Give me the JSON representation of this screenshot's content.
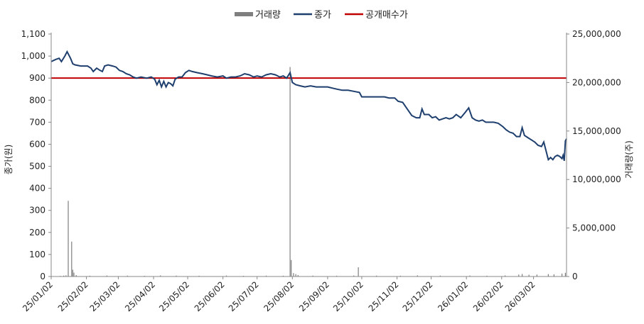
{
  "chart_data": {
    "type": "line",
    "legend": {
      "position": "top",
      "items": [
        {
          "label": "거래량",
          "color": "#7f7f7f",
          "kind": "bar"
        },
        {
          "label": "종가",
          "color": "#1f3f6e",
          "kind": "line"
        },
        {
          "label": "공개매수가",
          "color": "#c00000",
          "kind": "line"
        }
      ]
    },
    "ylabel": "종가(원)",
    "y2label": "거래량(주)",
    "ylim": [
      0,
      1100
    ],
    "y2lim": [
      0,
      25000000
    ],
    "yticks": [
      "0",
      "50",
      "100",
      "150",
      "200",
      "250",
      "300",
      "350",
      "400",
      "450",
      "500",
      "550",
      "600",
      "650",
      "700",
      "750",
      "800",
      "850",
      "900",
      "950",
      "1,000",
      "1,050",
      "1,100"
    ],
    "y2ticks": [
      "0",
      "5,000,000",
      "10,000,000",
      "15,000,000",
      "20,000,000",
      "25,000,000"
    ],
    "xticks": [
      "25/01/02",
      "25/02/02",
      "25/03/02",
      "25/04/02",
      "25/05/02",
      "25/06/02",
      "25/07/02",
      "25/08/02",
      "25/09/02",
      "25/10/02",
      "25/11/02",
      "25/12/02",
      "26/01/02",
      "26/02/02",
      "26/03/02"
    ],
    "x_range": [
      "2025-01-02",
      "2026-03-31"
    ],
    "tender_offer_price": 900,
    "series": [
      {
        "name": "종가",
        "color": "#1f3f6e",
        "points": [
          [
            "2025-01-02",
            975
          ],
          [
            "2025-01-06",
            985
          ],
          [
            "2025-01-09",
            990
          ],
          [
            "2025-01-11",
            975
          ],
          [
            "2025-01-14",
            1000
          ],
          [
            "2025-01-16",
            1020
          ],
          [
            "2025-01-19",
            990
          ],
          [
            "2025-01-21",
            965
          ],
          [
            "2025-01-23",
            960
          ],
          [
            "2025-01-28",
            955
          ],
          [
            "2025-02-03",
            955
          ],
          [
            "2025-02-06",
            945
          ],
          [
            "2025-02-08",
            930
          ],
          [
            "2025-02-11",
            945
          ],
          [
            "2025-02-14",
            935
          ],
          [
            "2025-02-16",
            930
          ],
          [
            "2025-02-18",
            955
          ],
          [
            "2025-02-21",
            960
          ],
          [
            "2025-02-25",
            955
          ],
          [
            "2025-02-28",
            950
          ],
          [
            "2025-03-03",
            935
          ],
          [
            "2025-03-06",
            930
          ],
          [
            "2025-03-09",
            920
          ],
          [
            "2025-03-12",
            915
          ],
          [
            "2025-03-15",
            905
          ],
          [
            "2025-03-18",
            900
          ],
          [
            "2025-03-22",
            905
          ],
          [
            "2025-03-27",
            900
          ],
          [
            "2025-03-31",
            905
          ],
          [
            "2025-04-03",
            895
          ],
          [
            "2025-04-05",
            870
          ],
          [
            "2025-04-07",
            890
          ],
          [
            "2025-04-09",
            860
          ],
          [
            "2025-04-11",
            885
          ],
          [
            "2025-04-13",
            860
          ],
          [
            "2025-04-15",
            880
          ],
          [
            "2025-04-17",
            875
          ],
          [
            "2025-04-19",
            865
          ],
          [
            "2025-04-21",
            895
          ],
          [
            "2025-04-24",
            905
          ],
          [
            "2025-04-27",
            905
          ],
          [
            "2025-04-30",
            925
          ],
          [
            "2025-05-03",
            935
          ],
          [
            "2025-05-06",
            930
          ],
          [
            "2025-05-10",
            925
          ],
          [
            "2025-05-15",
            920
          ],
          [
            "2025-05-19",
            915
          ],
          [
            "2025-05-23",
            910
          ],
          [
            "2025-05-28",
            905
          ],
          [
            "2025-06-02",
            910
          ],
          [
            "2025-06-05",
            900
          ],
          [
            "2025-06-09",
            905
          ],
          [
            "2025-06-13",
            905
          ],
          [
            "2025-06-17",
            910
          ],
          [
            "2025-06-21",
            920
          ],
          [
            "2025-06-25",
            915
          ],
          [
            "2025-06-29",
            905
          ],
          [
            "2025-07-02",
            910
          ],
          [
            "2025-07-06",
            905
          ],
          [
            "2025-07-10",
            915
          ],
          [
            "2025-07-14",
            920
          ],
          [
            "2025-07-18",
            915
          ],
          [
            "2025-07-22",
            905
          ],
          [
            "2025-07-25",
            910
          ],
          [
            "2025-07-28",
            900
          ],
          [
            "2025-07-31",
            925
          ],
          [
            "2025-08-02",
            880
          ],
          [
            "2025-08-05",
            870
          ],
          [
            "2025-08-09",
            865
          ],
          [
            "2025-08-13",
            860
          ],
          [
            "2025-08-18",
            865
          ],
          [
            "2025-08-23",
            860
          ],
          [
            "2025-08-28",
            860
          ],
          [
            "2025-09-02",
            860
          ],
          [
            "2025-09-06",
            855
          ],
          [
            "2025-09-10",
            850
          ],
          [
            "2025-09-15",
            845
          ],
          [
            "2025-09-20",
            845
          ],
          [
            "2025-09-25",
            840
          ],
          [
            "2025-09-30",
            835
          ],
          [
            "2025-10-02",
            815
          ],
          [
            "2025-10-06",
            815
          ],
          [
            "2025-10-10",
            815
          ],
          [
            "2025-10-14",
            815
          ],
          [
            "2025-10-18",
            815
          ],
          [
            "2025-10-22",
            815
          ],
          [
            "2025-10-26",
            810
          ],
          [
            "2025-10-31",
            810
          ],
          [
            "2025-11-03",
            795
          ],
          [
            "2025-11-07",
            790
          ],
          [
            "2025-11-11",
            760
          ],
          [
            "2025-11-15",
            730
          ],
          [
            "2025-11-19",
            720
          ],
          [
            "2025-11-22",
            720
          ],
          [
            "2025-11-24",
            760
          ],
          [
            "2025-11-26",
            735
          ],
          [
            "2025-11-30",
            735
          ],
          [
            "2025-12-03",
            720
          ],
          [
            "2025-12-06",
            725
          ],
          [
            "2025-12-09",
            710
          ],
          [
            "2025-12-12",
            715
          ],
          [
            "2025-12-15",
            720
          ],
          [
            "2025-12-18",
            715
          ],
          [
            "2025-12-21",
            720
          ],
          [
            "2025-12-24",
            735
          ],
          [
            "2025-12-28",
            720
          ],
          [
            "2026-01-01",
            745
          ],
          [
            "2026-01-04",
            765
          ],
          [
            "2026-01-07",
            720
          ],
          [
            "2026-01-10",
            710
          ],
          [
            "2026-01-13",
            705
          ],
          [
            "2026-01-16",
            710
          ],
          [
            "2026-01-19",
            700
          ],
          [
            "2026-01-22",
            700
          ],
          [
            "2026-01-26",
            700
          ],
          [
            "2026-01-30",
            695
          ],
          [
            "2026-02-03",
            680
          ],
          [
            "2026-02-06",
            665
          ],
          [
            "2026-02-09",
            655
          ],
          [
            "2026-02-12",
            650
          ],
          [
            "2026-02-15",
            635
          ],
          [
            "2026-02-18",
            635
          ],
          [
            "2026-02-20",
            675
          ],
          [
            "2026-02-22",
            640
          ],
          [
            "2026-02-25",
            630
          ],
          [
            "2026-02-28",
            620
          ],
          [
            "2026-03-03",
            610
          ],
          [
            "2026-03-06",
            595
          ],
          [
            "2026-03-09",
            590
          ],
          [
            "2026-03-11",
            610
          ],
          [
            "2026-03-13",
            570
          ],
          [
            "2026-03-15",
            530
          ],
          [
            "2026-03-17",
            540
          ],
          [
            "2026-03-19",
            530
          ],
          [
            "2026-03-21",
            545
          ],
          [
            "2026-03-23",
            550
          ],
          [
            "2026-03-25",
            545
          ],
          [
            "2026-03-27",
            535
          ],
          [
            "2026-03-28",
            550
          ],
          [
            "2026-03-29",
            525
          ],
          [
            "2026-03-30",
            615
          ],
          [
            "2026-03-31",
            625
          ]
        ]
      },
      {
        "name": "거래량",
        "color": "#7f7f7f",
        "bars": [
          [
            "2025-01-10",
            60000
          ],
          [
            "2025-01-13",
            90000
          ],
          [
            "2025-01-15",
            120000
          ],
          [
            "2025-01-17",
            7800000
          ],
          [
            "2025-01-20",
            3600000
          ],
          [
            "2025-01-21",
            700000
          ],
          [
            "2025-01-22",
            400000
          ],
          [
            "2025-01-24",
            150000
          ],
          [
            "2025-02-05",
            80000
          ],
          [
            "2025-02-20",
            100000
          ],
          [
            "2025-03-10",
            90000
          ],
          [
            "2025-03-25",
            70000
          ],
          [
            "2025-04-08",
            110000
          ],
          [
            "2025-04-22",
            90000
          ],
          [
            "2025-05-12",
            80000
          ],
          [
            "2025-06-05",
            100000
          ],
          [
            "2025-06-20",
            70000
          ],
          [
            "2025-07-10",
            90000
          ],
          [
            "2025-07-25",
            80000
          ],
          [
            "2025-07-31",
            21600000
          ],
          [
            "2025-08-01",
            1700000
          ],
          [
            "2025-08-03",
            350000
          ],
          [
            "2025-08-05",
            250000
          ],
          [
            "2025-08-07",
            150000
          ],
          [
            "2025-08-20",
            90000
          ],
          [
            "2025-09-10",
            80000
          ],
          [
            "2025-09-25",
            100000
          ],
          [
            "2025-09-29",
            950000
          ],
          [
            "2025-10-15",
            90000
          ],
          [
            "2025-11-05",
            80000
          ],
          [
            "2025-11-20",
            120000
          ],
          [
            "2025-12-10",
            90000
          ],
          [
            "2026-01-05",
            100000
          ],
          [
            "2026-01-20",
            80000
          ],
          [
            "2026-02-05",
            110000
          ],
          [
            "2026-02-17",
            200000
          ],
          [
            "2026-02-20",
            260000
          ],
          [
            "2026-02-26",
            180000
          ],
          [
            "2026-03-05",
            200000
          ],
          [
            "2026-03-15",
            250000
          ],
          [
            "2026-03-20",
            220000
          ],
          [
            "2026-03-27",
            300000
          ],
          [
            "2026-03-30",
            380000
          ]
        ]
      }
    ]
  }
}
